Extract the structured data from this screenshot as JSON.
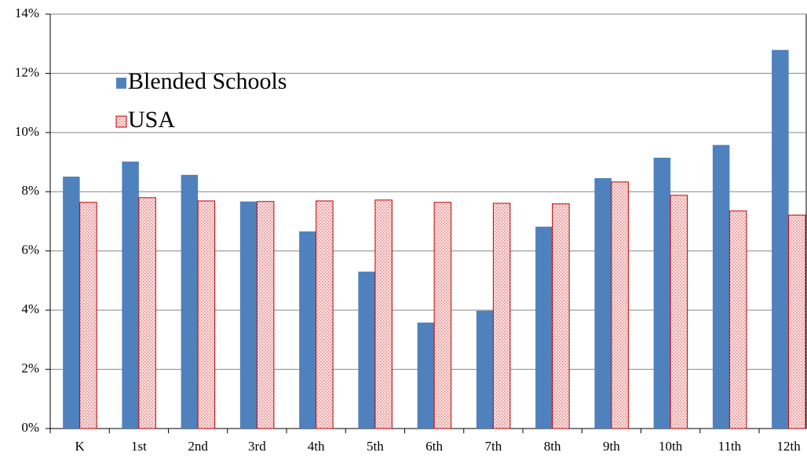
{
  "chart_data": {
    "type": "bar",
    "categories": [
      "K",
      "1st",
      "2nd",
      "3rd",
      "4th",
      "5th",
      "6th",
      "7th",
      "8th",
      "9th",
      "10th",
      "11th",
      "12th"
    ],
    "series": [
      {
        "name": "Blended Schools",
        "color": "#4f81bd",
        "values": [
          8.51,
          9.02,
          8.57,
          7.67,
          6.66,
          5.3,
          3.58,
          3.98,
          6.82,
          8.46,
          9.15,
          9.58,
          12.79
        ]
      },
      {
        "name": "USA",
        "color": "#c00000",
        "values": [
          7.64,
          7.8,
          7.69,
          7.67,
          7.69,
          7.72,
          7.64,
          7.61,
          7.59,
          8.33,
          7.88,
          7.35,
          7.21
        ]
      }
    ],
    "ylim": [
      0,
      14
    ],
    "yticks": [
      {
        "value": 0,
        "label": "0%"
      },
      {
        "value": 2,
        "label": "2%"
      },
      {
        "value": 4,
        "label": "4%"
      },
      {
        "value": 6,
        "label": "6%"
      },
      {
        "value": 8,
        "label": "8%"
      },
      {
        "value": 10,
        "label": "10%"
      },
      {
        "value": 12,
        "label": "12%"
      },
      {
        "value": 14,
        "label": "14%"
      }
    ],
    "grid": true
  }
}
